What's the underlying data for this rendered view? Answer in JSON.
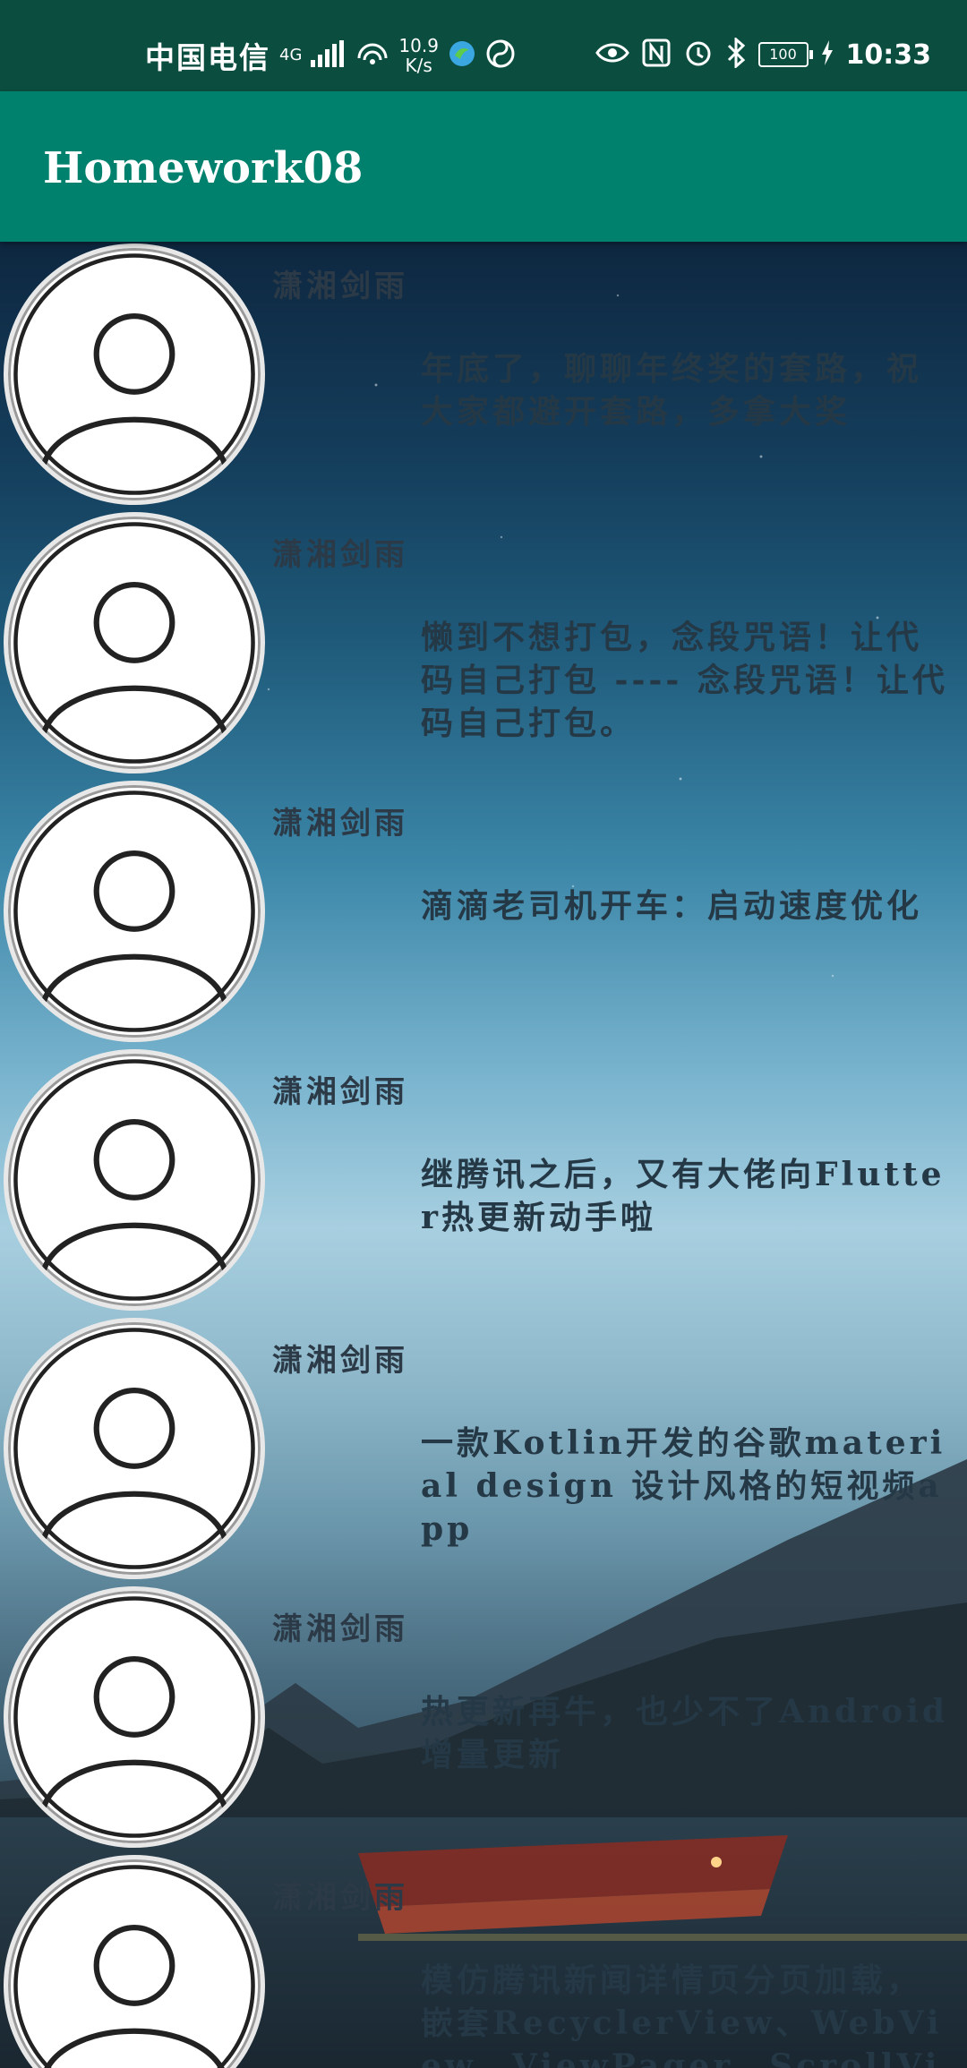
{
  "status_bar": {
    "carrier": "中国电信",
    "network": "4G",
    "speed_value": "10.9",
    "speed_unit": "K/s",
    "battery": "100",
    "time": "10:33"
  },
  "app": {
    "title": "Homework08"
  },
  "items": [
    {
      "author": "潇湘剑雨",
      "content": "年底了，聊聊年终奖的套路，祝大家都避开套路，多拿大奖"
    },
    {
      "author": "潇湘剑雨",
      "content": "懒到不想打包，念段咒语！让代码自己打包 ---- 念段咒语！让代码自己打包。"
    },
    {
      "author": "潇湘剑雨",
      "content": "滴滴老司机开车：启动速度优化"
    },
    {
      "author": "潇湘剑雨",
      "content": "继腾讯之后，又有大佬向Flutter热更新动手啦"
    },
    {
      "author": "潇湘剑雨",
      "content": "一款Kotlin开发的谷歌material design 设计风格的短视频app"
    },
    {
      "author": "潇湘剑雨",
      "content": "热更新再牛，也少不了Android增量更新"
    },
    {
      "author": "潇湘剑雨",
      "content": "模仿腾讯新闻详情页分页加载，嵌套RecyclerView、WebView、ViewPager、ScrollView"
    }
  ]
}
